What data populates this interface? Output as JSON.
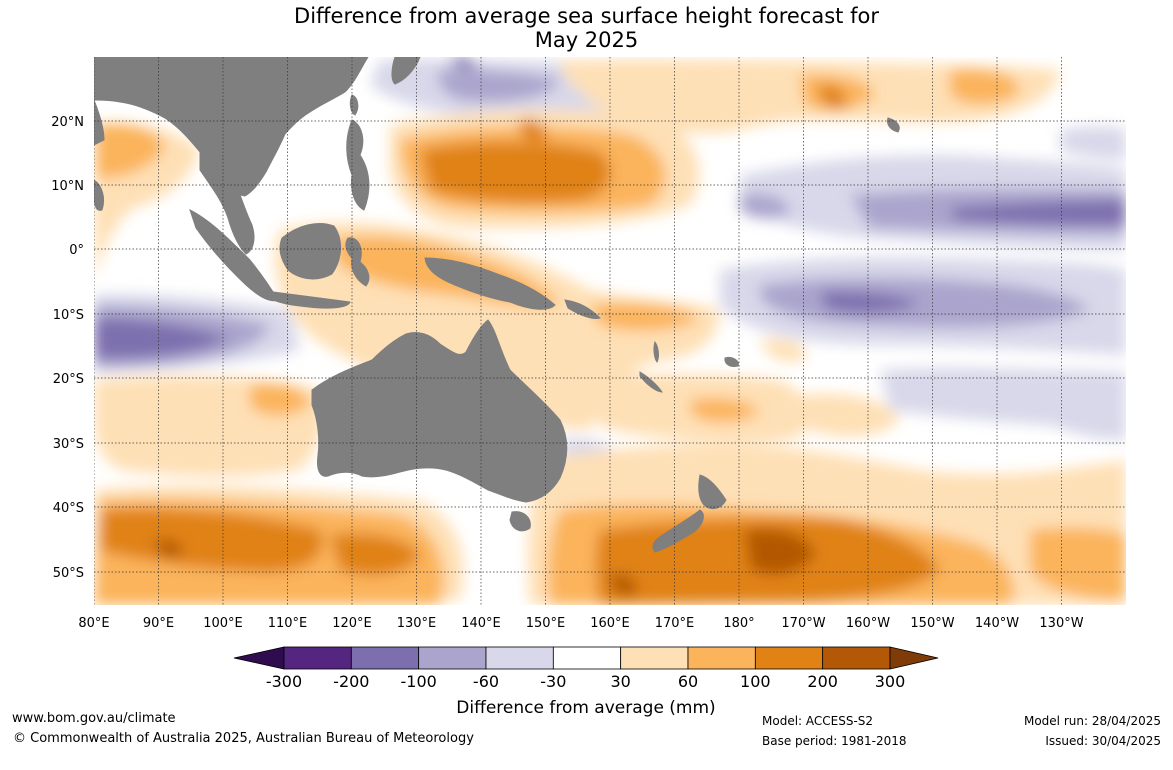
{
  "title": {
    "line1": "Difference from average sea surface height forecast for",
    "line2": "May 2025"
  },
  "map": {
    "lat_labels": [
      "20°N",
      "10°N",
      "0°",
      "10°S",
      "20°S",
      "30°S",
      "40°S",
      "50°S"
    ],
    "lon_labels": [
      "80°E",
      "90°E",
      "100°E",
      "110°E",
      "120°E",
      "130°E",
      "140°E",
      "150°E",
      "160°E",
      "170°E",
      "180°",
      "170°W",
      "160°W",
      "150°W",
      "140°W",
      "130°W"
    ]
  },
  "legend": {
    "title": "Difference from average (mm)",
    "tick_labels": [
      "-300",
      "-200",
      "-100",
      "-60",
      "-30",
      "30",
      "60",
      "100",
      "200",
      "300"
    ],
    "colors": [
      "#2e0c4f",
      "#54267f",
      "#7d6fae",
      "#aba5cd",
      "#d8d8ea",
      "#ffffff",
      "#fee0b6",
      "#fbb45c",
      "#e08214",
      "#b35806",
      "#7f3b08"
    ]
  },
  "colors": {
    "land": "#7f7f7f",
    "grid": "#333333"
  },
  "footer": {
    "url": "www.bom.gov.au/climate",
    "copyright": "© Commonwealth of Australia 2025, Australian Bureau of Meteorology",
    "model": "Model: ACCESS-S2",
    "base_period": "Base period: 1981-2018",
    "model_run": "Model run: 28/04/2025",
    "issued": "Issued: 30/04/2025"
  }
}
